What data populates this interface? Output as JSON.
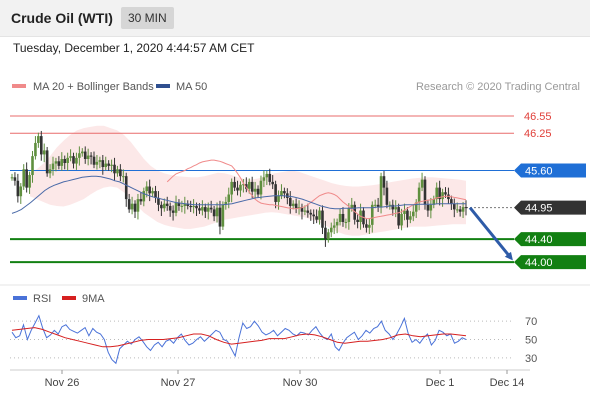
{
  "header": {
    "title": "Crude Oil (WTI)",
    "timeframe": "30 MIN"
  },
  "timestamp": "Tuesday, December 1, 2020 4:44:57 AM CET",
  "watermark": "Research © 2020 Trading Central",
  "legend_price": [
    {
      "label": "MA 20 + Bollinger Bands",
      "color": "#f08a8a"
    },
    {
      "label": "MA 50",
      "color": "#2f4f8f"
    }
  ],
  "legend_rsi": [
    {
      "label": "RSI",
      "color": "#4a72d8"
    },
    {
      "label": "9MA",
      "color": "#d62020"
    }
  ],
  "chart_data": [
    {
      "type": "candlestick",
      "x_labels": [
        "Nov 26",
        "Nov 27",
        "Nov 30",
        "Dec 1",
        "Dec 14"
      ],
      "ylim": [
        43.6,
        46.9
      ],
      "levels": [
        {
          "value": 46.55,
          "label": "46.55",
          "role": "resistance",
          "color": "#e86b6b"
        },
        {
          "value": 46.25,
          "label": "46.25",
          "role": "resistance",
          "color": "#e86b6b"
        },
        {
          "value": 45.6,
          "label": "45.60",
          "role": "pivot",
          "color": "#1f6fd6"
        },
        {
          "value": 44.95,
          "label": "44.95",
          "role": "last price",
          "color": "#333333"
        },
        {
          "value": 44.4,
          "label": "44.40",
          "role": "support",
          "color": "#128012"
        },
        {
          "value": 44.0,
          "label": "44.00",
          "role": "support",
          "color": "#128012"
        }
      ],
      "arrow": {
        "from": 44.95,
        "to": 44.0,
        "direction": "down",
        "color": "#2e5ba8"
      },
      "close": [
        45.48,
        45.42,
        45.15,
        45.32,
        45.62,
        45.3,
        45.52,
        45.85,
        46.08,
        46.2,
        45.88,
        45.95,
        45.55,
        45.62,
        45.72,
        45.76,
        45.68,
        45.8,
        45.73,
        45.82,
        45.85,
        45.72,
        45.82,
        45.9,
        45.93,
        45.8,
        45.86,
        45.84,
        45.7,
        45.75,
        45.78,
        45.66,
        45.72,
        45.68,
        45.7,
        45.55,
        45.62,
        45.5,
        45.5,
        45.1,
        44.92,
        45.02,
        44.88,
        45.1,
        45.06,
        45.24,
        45.32,
        45.2,
        45.24,
        45.12,
        45.0,
        44.94,
        45.02,
        44.98,
        44.9,
        44.86,
        45.04,
        44.98,
        44.98,
        45.02,
        44.98,
        44.96,
        44.98,
        44.94,
        44.9,
        44.96,
        44.88,
        44.95,
        44.92,
        44.8,
        44.95,
        44.62,
        45.0,
        45.05,
        45.18,
        45.4,
        45.3,
        45.25,
        45.35,
        45.36,
        45.28,
        45.4,
        45.23,
        45.28,
        45.18,
        45.42,
        45.48,
        45.54,
        45.4,
        45.36,
        45.05,
        45.16,
        45.24,
        45.2,
        45.12,
        44.98,
        45.02,
        44.94,
        44.96,
        44.88,
        44.9,
        44.86,
        44.83,
        44.8,
        44.74,
        44.9,
        44.6,
        44.4,
        44.52,
        44.6,
        44.64,
        44.7,
        44.84,
        44.7,
        44.7,
        44.94,
        45.0,
        44.74,
        44.7,
        44.9,
        44.66,
        44.6,
        44.65,
        45.0,
        45.0,
        44.96,
        45.5,
        45.3,
        45.0,
        45.0,
        44.92,
        44.96,
        44.64,
        44.84,
        44.9,
        44.74,
        44.8,
        44.88,
        45.04,
        45.3,
        45.44,
        45.0,
        44.9,
        45.0,
        45.1,
        45.3,
        45.1,
        45.22,
        45.18,
        45.1,
        45.02,
        44.92,
        44.92,
        44.88,
        44.96,
        44.95
      ],
      "ma20": [
        45.4,
        45.45,
        45.5,
        45.54,
        45.56,
        45.58,
        45.6,
        45.63,
        45.65,
        45.68,
        45.7,
        45.73,
        45.75,
        45.76,
        45.77,
        45.78,
        45.78,
        45.77,
        45.76,
        45.74,
        45.72,
        45.7,
        45.68,
        45.62,
        45.55,
        45.47,
        45.38,
        45.3,
        45.22,
        45.16,
        45.1,
        45.06,
        45.03,
        45.02,
        45.01,
        45.0,
        45.0,
        44.99,
        44.98,
        44.97,
        44.96,
        44.95,
        44.94,
        44.93,
        44.93,
        44.94,
        44.95,
        44.97,
        45.0,
        45.04,
        45.08,
        45.12,
        45.16,
        45.18,
        45.2,
        45.21,
        45.2,
        45.18,
        45.15,
        45.1,
        45.05,
        45.01,
        44.97,
        44.92,
        44.88,
        44.84,
        44.8,
        44.78,
        44.76,
        44.76,
        44.77,
        44.78,
        44.79,
        44.8,
        44.81,
        44.82,
        44.83,
        44.84,
        44.85,
        44.86,
        44.88,
        44.91,
        44.94,
        44.97,
        45.0,
        45.03,
        45.05,
        45.06,
        45.07,
        45.08,
        45.09,
        45.1,
        45.12,
        45.13,
        45.14,
        45.15,
        45.15,
        45.14,
        45.13,
        45.12,
        45.11,
        45.1,
        45.09
      ],
      "bollinger_upper": [
        45.55,
        45.62,
        45.72,
        45.85,
        46.0,
        46.12,
        46.22,
        46.3,
        46.34,
        46.36,
        46.38,
        46.38,
        46.34,
        46.3,
        46.22,
        46.1,
        45.95,
        45.8,
        45.68,
        45.6,
        45.55,
        45.52,
        45.5,
        45.49,
        45.48,
        45.48,
        45.5,
        45.53,
        45.56,
        45.55,
        45.52,
        45.48,
        45.45,
        45.44,
        45.46,
        45.5,
        45.54,
        45.56,
        45.58,
        45.6,
        45.58,
        45.54,
        45.5,
        45.46,
        45.42,
        45.38,
        45.35,
        45.33,
        45.32,
        45.32,
        45.33,
        45.34,
        45.36,
        45.38,
        45.4,
        45.42,
        45.44,
        45.46,
        45.47,
        45.48,
        45.48,
        45.47,
        45.46,
        45.45,
        45.44,
        45.42
      ],
      "bollinger_lower": [
        45.15,
        45.1,
        45.05,
        45.0,
        44.98,
        44.97,
        45.0,
        45.05,
        45.1,
        45.18,
        45.25,
        45.3,
        45.32,
        45.3,
        45.22,
        45.1,
        44.98,
        44.86,
        44.78,
        44.7,
        44.65,
        44.62,
        44.6,
        44.58,
        44.58,
        44.6,
        44.62,
        44.66,
        44.7,
        44.74,
        44.76,
        44.78,
        44.8,
        44.82,
        44.84,
        44.86,
        44.87,
        44.86,
        44.84,
        44.82,
        44.8,
        44.78,
        44.74,
        44.7,
        44.64,
        44.58,
        44.52,
        44.48,
        44.46,
        44.46,
        44.48,
        44.5,
        44.52,
        44.54,
        44.56,
        44.58,
        44.6,
        44.62,
        44.62,
        44.62,
        44.63,
        44.64,
        44.65,
        44.66,
        44.66,
        44.66
      ],
      "ma50": [
        44.85,
        44.88,
        44.92,
        44.98,
        45.04,
        45.11,
        45.18,
        45.25,
        45.3,
        45.34,
        45.37,
        45.4,
        45.42,
        45.44,
        45.46,
        45.48,
        45.49,
        45.5,
        45.5,
        45.49,
        45.47,
        45.45,
        45.42,
        45.4,
        45.36,
        45.32,
        45.28,
        45.24,
        45.2,
        45.17,
        45.14,
        45.12,
        45.1,
        45.08,
        45.06,
        45.04,
        45.03,
        45.02,
        45.01,
        45.0,
        45.0,
        45.0,
        45.0,
        45.0,
        45.0,
        45.0,
        45.01,
        45.02,
        45.04,
        45.06,
        45.08,
        45.1,
        45.12,
        45.13,
        45.14,
        45.15,
        45.16,
        45.16,
        45.16,
        45.15,
        45.14,
        45.12,
        45.1,
        45.07,
        45.04,
        45.01,
        44.98,
        44.96,
        44.94,
        44.93,
        44.93,
        44.94,
        44.94,
        44.94,
        44.95,
        44.95,
        44.95,
        44.95,
        44.96,
        44.96,
        44.97,
        44.98,
        44.98,
        44.99,
        45.0,
        45.0,
        45.0,
        45.01,
        45.01,
        45.01,
        45.01,
        45.02,
        45.02,
        45.02,
        45.02,
        45.02,
        45.02,
        45.02
      ]
    },
    {
      "type": "line",
      "title": "",
      "y_ticks": [
        "70",
        "50",
        "30"
      ],
      "ylim": [
        20,
        80
      ],
      "series": [
        {
          "name": "RSI",
          "values": [
            58,
            52,
            54,
            66,
            50,
            60,
            68,
            76,
            62,
            52,
            55,
            60,
            56,
            64,
            66,
            61,
            59,
            57,
            60,
            63,
            54,
            62,
            58,
            56,
            50,
            36,
            28,
            24,
            40,
            44,
            48,
            45,
            50,
            53,
            48,
            42,
            38,
            44,
            47,
            42,
            48,
            50,
            46,
            52,
            56,
            49,
            44,
            46,
            50,
            53,
            48,
            52,
            56,
            60,
            58,
            50,
            48,
            40,
            32,
            52,
            68,
            62,
            64,
            70,
            65,
            58,
            55,
            57,
            60,
            54,
            58,
            62,
            60,
            56,
            54,
            58,
            57,
            55,
            60,
            64,
            57,
            52,
            50,
            56,
            42,
            38,
            46,
            52,
            55,
            58,
            50,
            54,
            60,
            57,
            62,
            64,
            70,
            60,
            56,
            50,
            56,
            64,
            73,
            56,
            47,
            50,
            46,
            52,
            56,
            44,
            49,
            60,
            58,
            54,
            56,
            46,
            48,
            52,
            50
          ]
        },
        {
          "name": "9MA",
          "values": [
            60,
            61,
            62,
            63,
            61,
            58,
            55,
            52,
            50,
            48,
            46,
            44,
            42,
            42,
            43,
            45,
            47,
            49,
            50,
            50,
            50,
            51,
            52,
            54,
            56,
            56,
            54,
            50,
            47,
            45,
            46,
            47,
            48,
            49,
            51,
            51,
            51,
            53,
            55,
            56,
            55,
            53,
            50,
            47,
            46,
            47,
            48,
            48,
            49,
            50,
            52,
            55,
            56,
            54,
            53,
            54,
            55,
            56,
            56,
            55,
            54
          ]
        }
      ]
    }
  ]
}
